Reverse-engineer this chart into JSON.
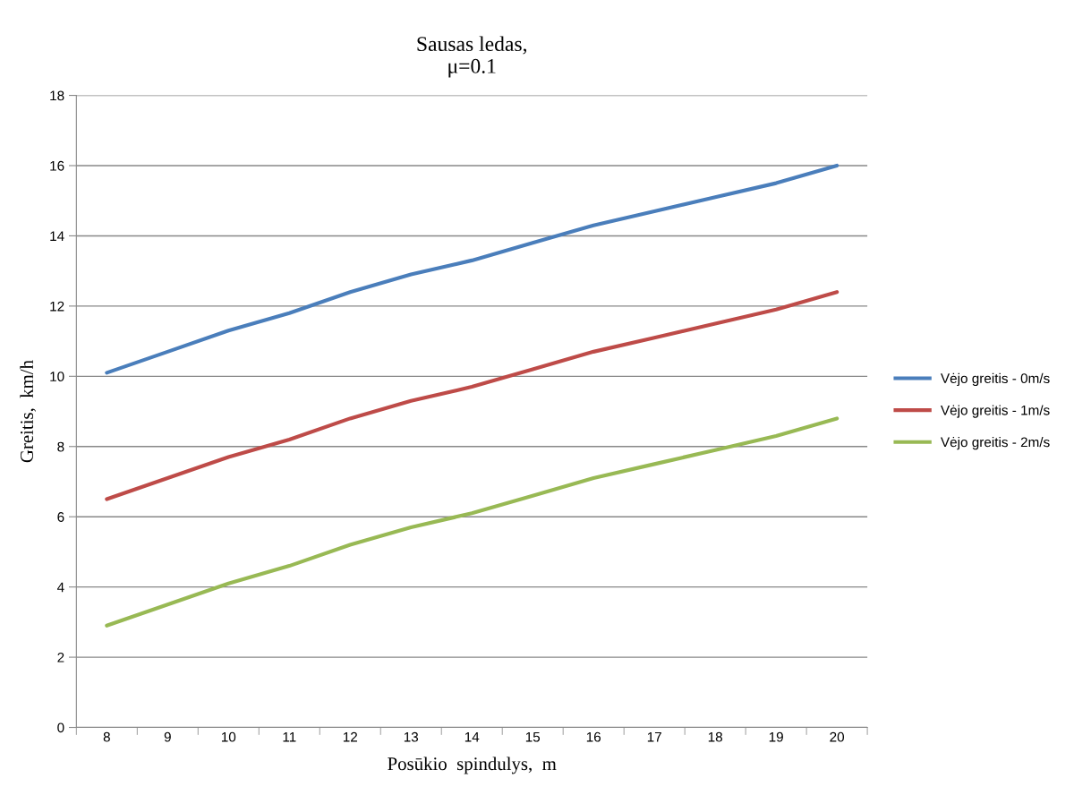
{
  "chart_data": {
    "type": "line",
    "title": "Sausas ledas,\nμ=0.1",
    "xlabel": "Posūkio  spindulys,  m",
    "ylabel": "Greitis,  km/h",
    "categories": [
      "8",
      "9",
      "10",
      "11",
      "12",
      "13",
      "14",
      "15",
      "16",
      "17",
      "18",
      "19",
      "20"
    ],
    "series": [
      {
        "name": "Vėjo greitis - 0m/s",
        "color": "#4a7ebb",
        "values": [
          10.1,
          10.7,
          11.3,
          11.8,
          12.4,
          12.9,
          13.3,
          13.8,
          14.3,
          14.7,
          15.1,
          15.5,
          16.0
        ]
      },
      {
        "name": "Vėjo greitis - 1m/s",
        "color": "#be4b48",
        "values": [
          6.5,
          7.1,
          7.7,
          8.2,
          8.8,
          9.3,
          9.7,
          10.2,
          10.7,
          11.1,
          11.5,
          11.9,
          12.4
        ]
      },
      {
        "name": "Vėjo greitis - 2m/s",
        "color": "#98b954",
        "values": [
          2.9,
          3.5,
          4.1,
          4.6,
          5.2,
          5.7,
          6.1,
          6.6,
          7.1,
          7.5,
          7.9,
          8.3,
          8.8
        ]
      }
    ],
    "ylim": [
      0,
      18
    ],
    "yticks": [
      0,
      2,
      4,
      6,
      8,
      10,
      12,
      14,
      16,
      18
    ],
    "grid": "y",
    "legend": "right",
    "marker": "none",
    "line_style": "solid"
  }
}
